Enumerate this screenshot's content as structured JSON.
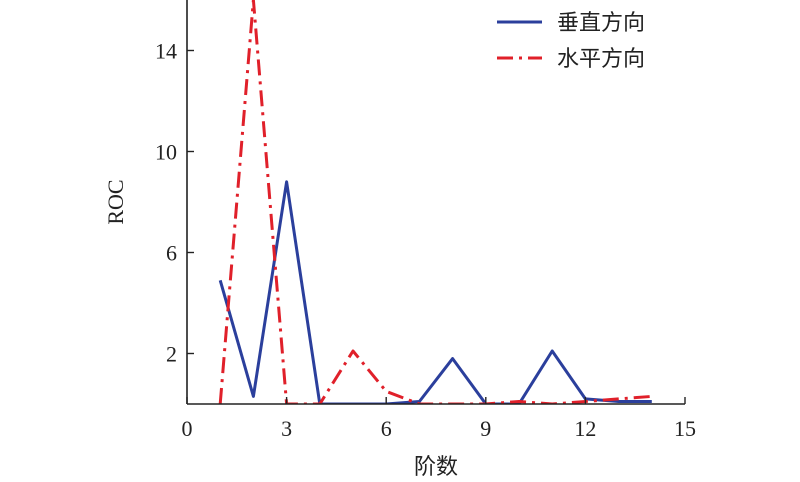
{
  "chart_data": {
    "type": "line",
    "title": "",
    "xlabel": "阶数",
    "ylabel": "ROC",
    "xlim": [
      0,
      15
    ],
    "ylim": [
      0,
      16
    ],
    "xticks": [
      0,
      3,
      6,
      9,
      12,
      15
    ],
    "yticks": [
      2,
      6,
      10,
      14
    ],
    "grid": false,
    "legend_position": "top-right",
    "series": [
      {
        "name": "垂直方向",
        "color": "#2b3f9c",
        "style": "solid",
        "x": [
          1,
          2,
          3,
          4,
          5,
          6,
          7,
          8,
          9,
          10,
          11,
          12,
          13,
          14
        ],
        "y": [
          4.9,
          0.3,
          8.8,
          0.0,
          0.0,
          0.0,
          0.1,
          1.8,
          0.0,
          0.0,
          2.1,
          0.2,
          0.1,
          0.1
        ]
      },
      {
        "name": "水平方向",
        "color": "#e0202a",
        "style": "dashdot",
        "x": [
          1,
          2,
          3,
          4,
          5,
          6,
          7,
          8,
          9,
          10,
          11,
          12,
          13,
          14
        ],
        "y": [
          0.0,
          16.0,
          0.0,
          0.0,
          2.1,
          0.5,
          0.0,
          0.0,
          0.0,
          0.1,
          0.0,
          0.1,
          0.2,
          0.3
        ]
      }
    ]
  }
}
